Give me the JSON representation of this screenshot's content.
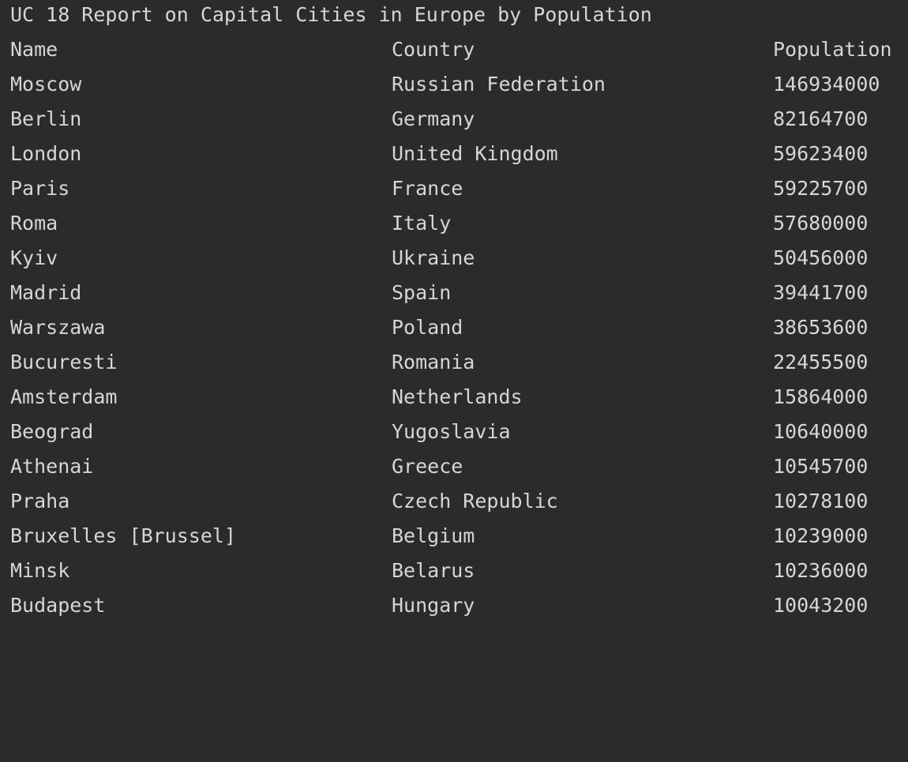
{
  "report": {
    "title": "UC 18 Report on Capital Cities in Europe by Population",
    "headers": [
      "Name",
      "Country",
      "Population"
    ],
    "rows": [
      [
        "Moscow",
        "Russian Federation",
        "146934000"
      ],
      [
        "Berlin",
        "Germany",
        "82164700"
      ],
      [
        "London",
        "United Kingdom",
        "59623400"
      ],
      [
        "Paris",
        "France",
        "59225700"
      ],
      [
        "Roma",
        "Italy",
        "57680000"
      ],
      [
        "Kyiv",
        "Ukraine",
        "50456000"
      ],
      [
        "Madrid",
        "Spain",
        "39441700"
      ],
      [
        "Warszawa",
        "Poland",
        "38653600"
      ],
      [
        "Bucuresti",
        "Romania",
        "22455500"
      ],
      [
        "Amsterdam",
        "Netherlands",
        "15864000"
      ],
      [
        "Beograd",
        "Yugoslavia",
        "10640000"
      ],
      [
        "Athenai",
        "Greece",
        "10545700"
      ],
      [
        "Praha",
        "Czech Republic",
        "10278100"
      ],
      [
        "Bruxelles [Brussel]",
        "Belgium",
        "10239000"
      ],
      [
        "Minsk",
        "Belarus",
        "10236000"
      ],
      [
        "Budapest",
        "Hungary",
        "10043200"
      ]
    ]
  }
}
